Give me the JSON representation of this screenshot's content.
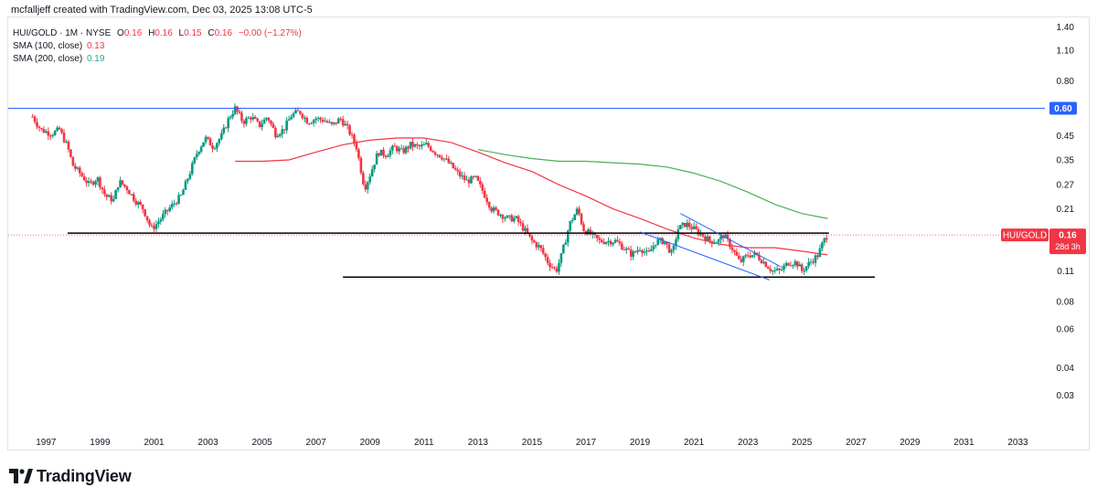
{
  "credit": "mcfalljeff created with TradingView.com, Dec 03, 2025 13:08 UTC-5",
  "legend": {
    "symbol": "HUI/GOLD · 1M · NYSE",
    "o_label": "O",
    "o_value": "0.16",
    "h_label": "H",
    "h_value": "0.16",
    "l_label": "L",
    "l_value": "0.15",
    "c_label": "C",
    "c_value": "0.16",
    "change": "−0.00 (−1.27%)",
    "sma100_label": "SMA (100, close)",
    "sma100_value": "0.13",
    "sma200_label": "SMA (200, close)",
    "sma200_value": "0.19"
  },
  "price_tag": {
    "symbol": "HUI/GOLD",
    "price": "0.16",
    "countdown": "28d 3h"
  },
  "brand": {
    "name": "TradingView"
  },
  "colors": {
    "up": "#089981",
    "down": "#f23645",
    "sma100": "#f23645",
    "sma200": "#4caf50",
    "hline": "#2962ff",
    "channel": "#2962ff"
  },
  "chart_data": {
    "type": "candlestick",
    "title": "HUI/GOLD · 1M · NYSE",
    "y_scale": "log",
    "ylim": [
      0.021,
      1.55
    ],
    "xlim": [
      1995.6,
      2034.0
    ],
    "y_ticks": [
      "1.40",
      "1.10",
      "0.80",
      "0.60",
      "0.45",
      "0.35",
      "0.27",
      "0.21",
      "0.16",
      "0.11",
      "0.08",
      "0.06",
      "0.04",
      "0.03"
    ],
    "x_ticks": [
      "1997",
      "1999",
      "2001",
      "2003",
      "2005",
      "2007",
      "2009",
      "2011",
      "2013",
      "2015",
      "2017",
      "2019",
      "2021",
      "2023",
      "2025",
      "2027",
      "2029",
      "2031",
      "2033"
    ],
    "price_path": [
      [
        1996.5,
        0.55
      ],
      [
        1996.8,
        0.48
      ],
      [
        1997.2,
        0.46
      ],
      [
        1997.5,
        0.48
      ],
      [
        1997.8,
        0.4
      ],
      [
        1998.0,
        0.33
      ],
      [
        1998.3,
        0.3
      ],
      [
        1998.6,
        0.27
      ],
      [
        1998.9,
        0.29
      ],
      [
        1999.2,
        0.24
      ],
      [
        1999.5,
        0.23
      ],
      [
        1999.7,
        0.28
      ],
      [
        2000.0,
        0.26
      ],
      [
        2000.3,
        0.23
      ],
      [
        2000.6,
        0.21
      ],
      [
        2000.9,
        0.17
      ],
      [
        2001.1,
        0.18
      ],
      [
        2001.4,
        0.2
      ],
      [
        2001.7,
        0.22
      ],
      [
        2002.0,
        0.24
      ],
      [
        2002.3,
        0.3
      ],
      [
        2002.6,
        0.38
      ],
      [
        2002.9,
        0.44
      ],
      [
        2003.2,
        0.4
      ],
      [
        2003.5,
        0.45
      ],
      [
        2003.8,
        0.55
      ],
      [
        2004.0,
        0.6
      ],
      [
        2004.3,
        0.52
      ],
      [
        2004.6,
        0.55
      ],
      [
        2004.9,
        0.5
      ],
      [
        2005.2,
        0.55
      ],
      [
        2005.5,
        0.46
      ],
      [
        2005.8,
        0.48
      ],
      [
        2006.1,
        0.56
      ],
      [
        2006.4,
        0.58
      ],
      [
        2006.7,
        0.52
      ],
      [
        2007.0,
        0.54
      ],
      [
        2007.3,
        0.53
      ],
      [
        2007.6,
        0.5
      ],
      [
        2007.9,
        0.54
      ],
      [
        2008.2,
        0.48
      ],
      [
        2008.5,
        0.4
      ],
      [
        2008.8,
        0.26
      ],
      [
        2009.0,
        0.3
      ],
      [
        2009.3,
        0.38
      ],
      [
        2009.6,
        0.37
      ],
      [
        2009.9,
        0.4
      ],
      [
        2010.2,
        0.38
      ],
      [
        2010.5,
        0.41
      ],
      [
        2010.8,
        0.4
      ],
      [
        2011.1,
        0.41
      ],
      [
        2011.4,
        0.38
      ],
      [
        2011.7,
        0.36
      ],
      [
        2012.0,
        0.33
      ],
      [
        2012.3,
        0.3
      ],
      [
        2012.6,
        0.28
      ],
      [
        2012.9,
        0.29
      ],
      [
        2013.2,
        0.25
      ],
      [
        2013.5,
        0.21
      ],
      [
        2013.8,
        0.2
      ],
      [
        2014.1,
        0.19
      ],
      [
        2014.4,
        0.19
      ],
      [
        2014.7,
        0.17
      ],
      [
        2015.0,
        0.15
      ],
      [
        2015.3,
        0.14
      ],
      [
        2015.6,
        0.12
      ],
      [
        2015.9,
        0.11
      ],
      [
        2016.1,
        0.13
      ],
      [
        2016.4,
        0.18
      ],
      [
        2016.7,
        0.21
      ],
      [
        2016.9,
        0.17
      ],
      [
        2017.2,
        0.16
      ],
      [
        2017.5,
        0.15
      ],
      [
        2017.8,
        0.15
      ],
      [
        2018.1,
        0.15
      ],
      [
        2018.4,
        0.14
      ],
      [
        2018.7,
        0.13
      ],
      [
        2019.0,
        0.14
      ],
      [
        2019.3,
        0.13
      ],
      [
        2019.6,
        0.15
      ],
      [
        2019.9,
        0.15
      ],
      [
        2020.2,
        0.13
      ],
      [
        2020.4,
        0.17
      ],
      [
        2020.7,
        0.18
      ],
      [
        2021.0,
        0.17
      ],
      [
        2021.3,
        0.16
      ],
      [
        2021.6,
        0.15
      ],
      [
        2021.9,
        0.15
      ],
      [
        2022.1,
        0.16
      ],
      [
        2022.4,
        0.14
      ],
      [
        2022.7,
        0.12
      ],
      [
        2023.0,
        0.13
      ],
      [
        2023.3,
        0.13
      ],
      [
        2023.6,
        0.12
      ],
      [
        2023.9,
        0.11
      ],
      [
        2024.2,
        0.11
      ],
      [
        2024.5,
        0.12
      ],
      [
        2024.8,
        0.12
      ],
      [
        2025.0,
        0.11
      ],
      [
        2025.3,
        0.12
      ],
      [
        2025.6,
        0.13
      ],
      [
        2025.8,
        0.15
      ],
      [
        2025.95,
        0.16
      ]
    ],
    "sma100": [
      [
        2004.0,
        0.345
      ],
      [
        2005.0,
        0.345
      ],
      [
        2006.0,
        0.35
      ],
      [
        2007.0,
        0.38
      ],
      [
        2008.0,
        0.41
      ],
      [
        2009.0,
        0.43
      ],
      [
        2010.0,
        0.44
      ],
      [
        2011.0,
        0.44
      ],
      [
        2012.0,
        0.42
      ],
      [
        2013.0,
        0.38
      ],
      [
        2014.0,
        0.34
      ],
      [
        2015.0,
        0.31
      ],
      [
        2016.0,
        0.27
      ],
      [
        2017.0,
        0.24
      ],
      [
        2018.0,
        0.21
      ],
      [
        2019.0,
        0.19
      ],
      [
        2020.0,
        0.17
      ],
      [
        2021.0,
        0.155
      ],
      [
        2022.0,
        0.145
      ],
      [
        2023.0,
        0.14
      ],
      [
        2024.0,
        0.14
      ],
      [
        2025.0,
        0.135
      ],
      [
        2025.95,
        0.13
      ]
    ],
    "sma200": [
      [
        2013.0,
        0.39
      ],
      [
        2014.0,
        0.37
      ],
      [
        2015.0,
        0.355
      ],
      [
        2016.0,
        0.345
      ],
      [
        2017.0,
        0.345
      ],
      [
        2018.0,
        0.34
      ],
      [
        2019.0,
        0.335
      ],
      [
        2020.0,
        0.325
      ],
      [
        2021.0,
        0.305
      ],
      [
        2022.0,
        0.28
      ],
      [
        2023.0,
        0.25
      ],
      [
        2024.0,
        0.22
      ],
      [
        2025.0,
        0.2
      ],
      [
        2025.95,
        0.19
      ]
    ],
    "annotations": [
      {
        "type": "horizontal_line",
        "price": 0.6,
        "label": "0.60",
        "color": "#2962ff"
      },
      {
        "type": "trend_line",
        "from": [
          1997.8,
          0.163
        ],
        "to": [
          2026.0,
          0.163
        ],
        "color": "#000000"
      },
      {
        "type": "trend_line",
        "from": [
          2008.0,
          0.103
        ],
        "to": [
          2027.7,
          0.103
        ],
        "color": "#000000"
      },
      {
        "type": "channel_line",
        "from": [
          2020.5,
          0.2
        ],
        "to": [
          2024.2,
          0.115
        ],
        "color": "#2962ff"
      },
      {
        "type": "channel_line",
        "from": [
          2019.0,
          0.165
        ],
        "to": [
          2023.8,
          0.1
        ],
        "color": "#2962ff"
      }
    ]
  }
}
